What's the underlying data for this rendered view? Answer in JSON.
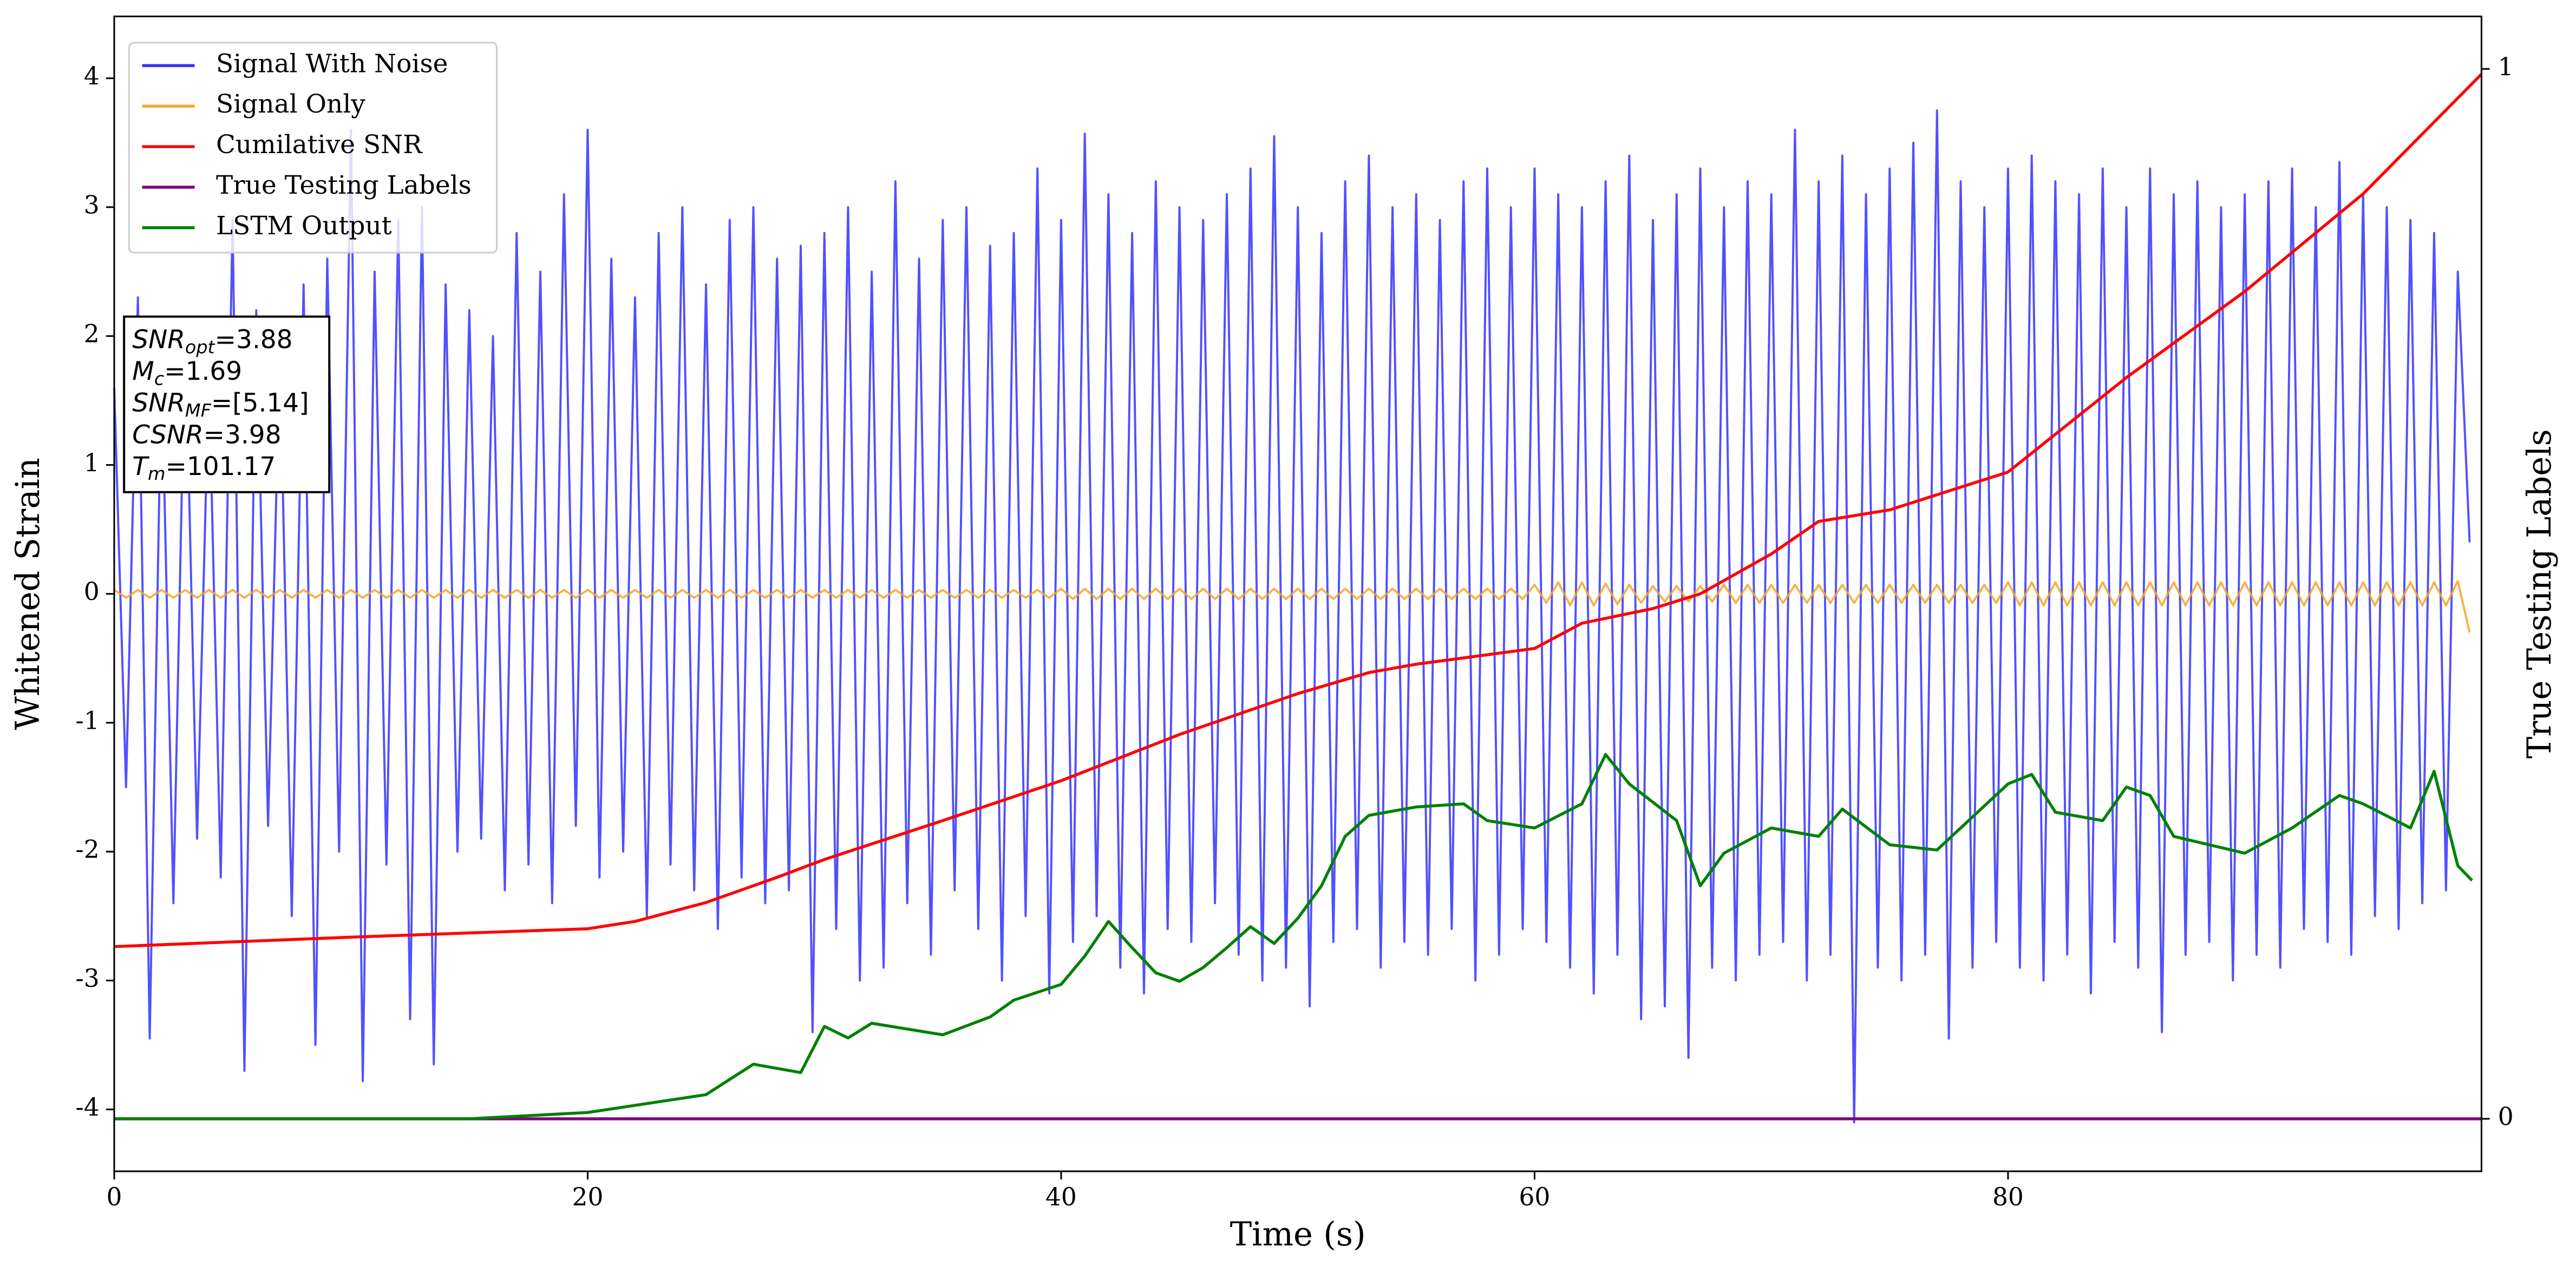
{
  "chart_data": {
    "type": "line",
    "xlabel": "Time (s)",
    "ylabel": "Whitened Strain",
    "y2label": "True Testing Labels",
    "xlim": [
      0,
      100
    ],
    "xticks": [
      0,
      20,
      40,
      60,
      80
    ],
    "ylim": [
      -4.48,
      4.48
    ],
    "yticks": [
      -4,
      -3,
      -2,
      -1,
      0,
      1,
      2,
      3,
      4
    ],
    "y2lim": [
      -0.05,
      1.05
    ],
    "y2ticks": [
      0,
      1
    ],
    "legend": "upper left",
    "annotations": [
      {
        "symbol": "SNR",
        "subscript": "opt",
        "text": "=3.88"
      },
      {
        "symbol": "M",
        "subscript": "c",
        "text": "=1.69"
      },
      {
        "symbol": "SNR",
        "subscript": "MF",
        "text": "=[5.14]"
      },
      {
        "symbol": "CSNR",
        "subscript": null,
        "text": "=3.98"
      },
      {
        "symbol": "T",
        "subscript": "m",
        "text": "=101.17"
      }
    ],
    "x": [
      0,
      0.5,
      1,
      1.5,
      2,
      2.5,
      3,
      3.5,
      4,
      4.5,
      5,
      5.5,
      6,
      6.5,
      7,
      7.5,
      8,
      8.5,
      9,
      9.5,
      10,
      10.5,
      11,
      11.5,
      12,
      12.5,
      13,
      13.5,
      14,
      14.5,
      15,
      15.5,
      16,
      16.5,
      17,
      17.5,
      18,
      18.5,
      19,
      19.5,
      20,
      20.5,
      21,
      21.5,
      22,
      22.5,
      23,
      23.5,
      24,
      24.5,
      25,
      25.5,
      26,
      26.5,
      27,
      27.5,
      28,
      28.5,
      29,
      29.5,
      30,
      30.5,
      31,
      31.5,
      32,
      32.5,
      33,
      33.5,
      34,
      34.5,
      35,
      35.5,
      36,
      36.5,
      37,
      37.5,
      38,
      38.5,
      39,
      39.5,
      40,
      40.5,
      41,
      41.5,
      42,
      42.5,
      43,
      43.5,
      44,
      44.5,
      45,
      45.5,
      46,
      46.5,
      47,
      47.5,
      48,
      48.5,
      49,
      49.5,
      50,
      50.5,
      51,
      51.5,
      52,
      52.5,
      53,
      53.5,
      54,
      54.5,
      55,
      55.5,
      56,
      56.5,
      57,
      57.5,
      58,
      58.5,
      59,
      59.5,
      60,
      60.5,
      61,
      61.5,
      62,
      62.5,
      63,
      63.5,
      64,
      64.5,
      65,
      65.5,
      66,
      66.5,
      67,
      67.5,
      68,
      68.5,
      69,
      69.5,
      70,
      70.5,
      71,
      71.5,
      72,
      72.5,
      73,
      73.5,
      74,
      74.5,
      75,
      75.5,
      76,
      76.5,
      77,
      77.5,
      78,
      78.5,
      79,
      79.5,
      80,
      80.5,
      81,
      81.5,
      82,
      82.5,
      83,
      83.5,
      84,
      84.5,
      85,
      85.5,
      86,
      86.5,
      87,
      87.5,
      88,
      88.5,
      89,
      89.5,
      90,
      90.5,
      91,
      91.5,
      92,
      92.5,
      93,
      93.5,
      94,
      94.5,
      95,
      95.5,
      96,
      96.5,
      97,
      97.5,
      98,
      98.5,
      99,
      99.5
    ],
    "series": [
      {
        "name": "Signal With Noise",
        "color": "#3333ff",
        "values": [
          1.6,
          -1.5,
          2.3,
          -3.45,
          1.8,
          -2.4,
          2.1,
          -1.9,
          1.7,
          -2.2,
          2.9,
          -3.7,
          2.2,
          -1.8,
          1.9,
          -2.5,
          2.4,
          -3.5,
          2.6,
          -2.0,
          3.6,
          -3.78,
          2.5,
          -2.1,
          2.9,
          -3.3,
          3.0,
          -3.65,
          2.4,
          -2.0,
          2.2,
          -1.9,
          2.0,
          -2.3,
          2.8,
          -2.1,
          2.5,
          -2.4,
          3.1,
          -1.8,
          3.6,
          -2.2,
          2.6,
          -2.0,
          2.3,
          -2.5,
          2.8,
          -2.1,
          3.0,
          -2.3,
          2.4,
          -2.6,
          2.9,
          -2.2,
          3.0,
          -2.4,
          2.6,
          -2.3,
          2.7,
          -3.4,
          2.8,
          -2.6,
          3.0,
          -3.0,
          2.5,
          -2.9,
          3.2,
          -2.4,
          2.6,
          -2.8,
          2.9,
          -2.3,
          3.0,
          -2.6,
          2.7,
          -3.0,
          2.8,
          -2.5,
          3.3,
          -3.1,
          2.9,
          -2.7,
          3.57,
          -2.5,
          3.1,
          -2.9,
          2.8,
          -3.1,
          3.2,
          -2.6,
          3.0,
          -2.7,
          2.9,
          -2.4,
          3.1,
          -2.8,
          3.3,
          -3.0,
          3.55,
          -2.9,
          3.0,
          -3.2,
          2.8,
          -2.7,
          3.2,
          -2.6,
          3.4,
          -2.9,
          3.0,
          -2.7,
          3.1,
          -2.8,
          2.9,
          -2.6,
          3.2,
          -3.0,
          3.3,
          -2.8,
          3.0,
          -2.6,
          3.3,
          -2.7,
          3.1,
          -2.9,
          3.0,
          -3.1,
          3.2,
          -2.8,
          3.4,
          -3.3,
          2.9,
          -3.2,
          3.1,
          -3.6,
          3.3,
          -2.9,
          3.0,
          -3.0,
          3.2,
          -2.8,
          3.1,
          -2.7,
          3.6,
          -3.0,
          3.2,
          -2.8,
          3.4,
          -4.1,
          3.1,
          -2.9,
          3.3,
          -3.0,
          3.5,
          -2.8,
          3.75,
          -3.45,
          3.2,
          -2.9,
          3.0,
          -2.7,
          3.3,
          -2.9,
          3.4,
          -3.0,
          3.2,
          -2.8,
          3.1,
          -3.1,
          3.3,
          -2.7,
          3.0,
          -2.9,
          3.3,
          -3.4,
          3.1,
          -2.8,
          3.2,
          -2.7,
          3.0,
          -3.0,
          3.1,
          -2.8,
          3.2,
          -2.9,
          3.3,
          -2.6,
          3.0,
          -2.7,
          3.35,
          -2.8,
          3.1,
          -2.5,
          3.0,
          -2.6,
          2.9,
          -2.4,
          2.8,
          -2.3,
          2.5,
          0.4
        ]
      },
      {
        "name": "Signal Only",
        "color": "#f5a623",
        "values": [
          0.03,
          -0.03,
          0.03,
          -0.03,
          0.03,
          -0.03,
          0.03,
          -0.03,
          0.03,
          -0.03,
          0.03,
          -0.03,
          0.03,
          -0.03,
          0.03,
          -0.03,
          0.03,
          -0.03,
          0.03,
          -0.03,
          0.03,
          -0.03,
          0.03,
          -0.03,
          0.03,
          -0.03,
          0.03,
          -0.03,
          0.03,
          -0.03,
          0.03,
          -0.03,
          0.03,
          -0.03,
          0.03,
          -0.03,
          0.03,
          -0.03,
          0.03,
          -0.03,
          0.03,
          -0.03,
          0.03,
          -0.03,
          0.03,
          -0.03,
          0.03,
          -0.03,
          0.03,
          -0.03,
          0.03,
          -0.03,
          0.03,
          -0.03,
          0.03,
          -0.03,
          0.03,
          -0.03,
          0.03,
          -0.03,
          0.03,
          -0.03,
          0.03,
          -0.03,
          0.03,
          -0.03,
          0.03,
          -0.03,
          0.03,
          -0.03,
          0.03,
          -0.03,
          0.03,
          -0.03,
          0.03,
          -0.03,
          0.03,
          -0.03,
          0.03,
          -0.03,
          0.04,
          -0.04,
          0.04,
          -0.04,
          0.04,
          -0.04,
          0.04,
          -0.04,
          0.04,
          -0.04,
          0.04,
          -0.04,
          0.04,
          -0.04,
          0.04,
          -0.04,
          0.04,
          -0.04,
          0.04,
          -0.04,
          0.04,
          -0.04,
          0.04,
          -0.04,
          0.04,
          -0.04,
          0.04,
          -0.04,
          0.04,
          -0.04,
          0.04,
          -0.04,
          0.04,
          -0.04,
          0.04,
          -0.04,
          0.04,
          -0.04,
          0.04,
          -0.04,
          0.07,
          -0.07,
          0.09,
          -0.09,
          0.09,
          -0.09,
          0.08,
          -0.08,
          0.07,
          -0.07,
          0.06,
          -0.06,
          0.06,
          -0.06,
          0.06,
          -0.06,
          0.07,
          -0.07,
          0.07,
          -0.07,
          0.07,
          -0.07,
          0.07,
          -0.07,
          0.07,
          -0.07,
          0.07,
          -0.07,
          0.07,
          -0.07,
          0.07,
          -0.07,
          0.07,
          -0.07,
          0.07,
          -0.07,
          0.07,
          -0.07,
          0.07,
          -0.07,
          0.09,
          -0.09,
          0.09,
          -0.09,
          0.09,
          -0.09,
          0.09,
          -0.09,
          0.09,
          -0.09,
          0.09,
          -0.09,
          0.09,
          -0.09,
          0.09,
          -0.09,
          0.09,
          -0.09,
          0.09,
          -0.09,
          0.09,
          -0.09,
          0.09,
          -0.09,
          0.09,
          -0.09,
          0.09,
          -0.09,
          0.09,
          -0.09,
          0.09,
          -0.09,
          0.09,
          -0.09,
          0.09,
          -0.09,
          0.09,
          -0.09,
          0.1,
          -0.3
        ]
      },
      {
        "name": "Cumilative SNR",
        "color": "#ff0000",
        "axis": "y2",
        "x": [
          0,
          10,
          20,
          22,
          25,
          28,
          30,
          35,
          40,
          45,
          50,
          53,
          55,
          60,
          62,
          65,
          67,
          70,
          72,
          75,
          80,
          82,
          85,
          90,
          95,
          100
        ],
        "values": [
          0.164,
          0.173,
          0.181,
          0.188,
          0.206,
          0.23,
          0.247,
          0.284,
          0.322,
          0.366,
          0.405,
          0.425,
          0.433,
          0.448,
          0.472,
          0.486,
          0.5,
          0.538,
          0.569,
          0.58,
          0.616,
          0.652,
          0.706,
          0.788,
          0.881,
          0.995
        ]
      },
      {
        "name": "True Testing Labels",
        "color": "#800080",
        "axis": "y2",
        "x": [
          0,
          100
        ],
        "values": [
          0,
          0
        ]
      },
      {
        "name": "LSTM Output",
        "color": "#008000",
        "axis": "y2",
        "x": [
          0,
          15,
          20,
          25,
          27,
          29,
          30,
          31,
          32,
          35,
          37,
          38,
          40,
          41,
          42,
          43,
          44,
          45,
          46,
          47,
          48,
          49,
          50,
          51,
          52,
          53,
          55,
          57,
          58,
          60,
          62,
          63,
          64,
          66,
          67,
          68,
          70,
          72,
          73,
          75,
          77,
          78,
          80,
          81,
          82,
          84,
          85,
          86,
          87,
          90,
          92,
          94,
          95,
          97,
          98,
          99,
          99.6
        ],
        "values": [
          0,
          0,
          0.006,
          0.023,
          0.052,
          0.044,
          0.088,
          0.077,
          0.091,
          0.08,
          0.097,
          0.113,
          0.128,
          0.155,
          0.188,
          0.163,
          0.139,
          0.131,
          0.144,
          0.163,
          0.183,
          0.167,
          0.191,
          0.222,
          0.269,
          0.289,
          0.297,
          0.3,
          0.284,
          0.277,
          0.3,
          0.347,
          0.319,
          0.284,
          0.222,
          0.253,
          0.277,
          0.269,
          0.295,
          0.261,
          0.256,
          0.277,
          0.319,
          0.328,
          0.292,
          0.284,
          0.316,
          0.308,
          0.269,
          0.253,
          0.277,
          0.308,
          0.3,
          0.277,
          0.331,
          0.241,
          0.227
        ]
      }
    ]
  }
}
